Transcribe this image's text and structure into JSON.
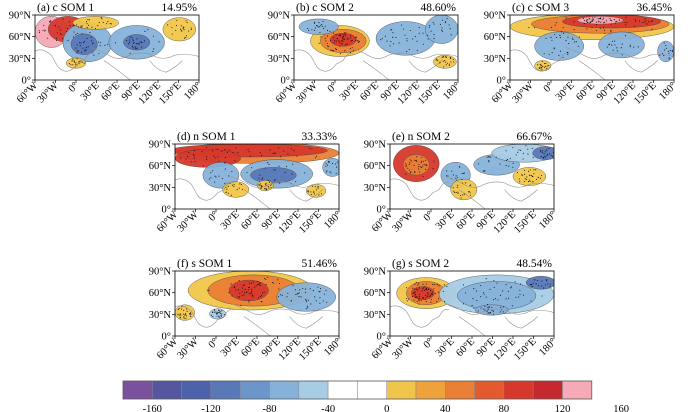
{
  "panels": [
    {
      "id": "a",
      "title": "(a) c SOM 1",
      "percent": "14.95%"
    },
    {
      "id": "b",
      "title": "(b) c SOM 2",
      "percent": "48.60%"
    },
    {
      "id": "c",
      "title": "(c) c SOM 3",
      "percent": "36.45%"
    },
    {
      "id": "d",
      "title": "(d) n SOM 1",
      "percent": "33.33%"
    },
    {
      "id": "e",
      "title": "(e) n SOM 2",
      "percent": "66.67%"
    },
    {
      "id": "f",
      "title": "(f) s SOM 1",
      "percent": "51.46%"
    },
    {
      "id": "g",
      "title": "(g) s SOM 2",
      "percent": "48.54%"
    }
  ],
  "axes": {
    "lon_labels": [
      "60°W",
      "30°W",
      "0°",
      "30°E",
      "60°E",
      "90°E",
      "120°E",
      "150°E",
      "180°"
    ],
    "lat_labels": [
      "0°",
      "30°N",
      "60°N",
      "90°N"
    ]
  },
  "colorbar": {
    "tick_labels": [
      "-160",
      "-120",
      "-80",
      "-40",
      "0",
      "40",
      "80",
      "120",
      "160"
    ],
    "colors": [
      "#7b519d",
      "#55569f",
      "#4c63ab",
      "#5878b8",
      "#6b95cb",
      "#86b2da",
      "#a6cce6",
      "#ffffff",
      "#ffffff",
      "#f0c64a",
      "#eea23c",
      "#e97f34",
      "#e35a2f",
      "#d6382c",
      "#c5282c",
      "#f6a9b6"
    ]
  }
}
